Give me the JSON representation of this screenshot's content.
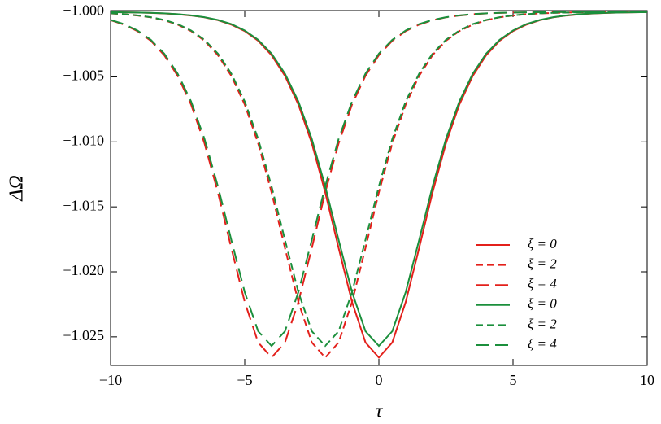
{
  "chart_data": {
    "type": "line",
    "x_label": "τ",
    "y_label": "ΔΩ",
    "x": [
      -10,
      -9.5,
      -9,
      -8.5,
      -8,
      -7.5,
      -7,
      -6.5,
      -6,
      -5.5,
      -5,
      -4.5,
      -4,
      -3.5,
      -3,
      -2.5,
      -2,
      -1.5,
      -1,
      -0.5,
      0,
      0.5,
      1,
      1.5,
      2,
      2.5,
      3,
      3.5,
      4,
      4.5,
      5,
      5.5,
      6,
      6.5,
      7,
      7.5,
      8,
      8.5,
      9,
      9.5,
      10
    ],
    "series": [
      {
        "name": "ξ = 0",
        "color": "#e3201b",
        "dash": "solid",
        "values": [
          -1.00002,
          -1.00003,
          -1.00005,
          -1.00008,
          -1.00012,
          -1.00018,
          -1.00028,
          -1.00042,
          -1.00064,
          -1.00098,
          -1.00148,
          -1.00222,
          -1.00333,
          -1.00492,
          -1.00713,
          -1.01011,
          -1.01389,
          -1.01817,
          -1.02232,
          -1.02543,
          -1.0266,
          -1.02543,
          -1.02232,
          -1.01817,
          -1.01389,
          -1.01011,
          -1.00713,
          -1.00492,
          -1.00333,
          -1.00222,
          -1.00148,
          -1.00098,
          -1.00064,
          -1.00042,
          -1.00028,
          -1.00018,
          -1.00012,
          -1.00008,
          -1.00005,
          -1.00003,
          -1.00002
        ]
      },
      {
        "name": "ξ = 2",
        "color": "#e3201b",
        "dash": "short",
        "values": [
          -1.00012,
          -1.00018,
          -1.00028,
          -1.00042,
          -1.00064,
          -1.00098,
          -1.00148,
          -1.00222,
          -1.00333,
          -1.00492,
          -1.00713,
          -1.01011,
          -1.01389,
          -1.01817,
          -1.02232,
          -1.02543,
          -1.0266,
          -1.02543,
          -1.02232,
          -1.01817,
          -1.01389,
          -1.01011,
          -1.00713,
          -1.00492,
          -1.00333,
          -1.00222,
          -1.00148,
          -1.00098,
          -1.00064,
          -1.00042,
          -1.00028,
          -1.00018,
          -1.00012,
          -1.00008,
          -1.00005,
          -1.00003,
          -1.00002,
          -1.00001,
          -1.00001,
          -1.00001,
          -1
        ]
      },
      {
        "name": "ξ = 4",
        "color": "#e3201b",
        "dash": "long",
        "values": [
          -1.00064,
          -1.00098,
          -1.00148,
          -1.00222,
          -1.00333,
          -1.00492,
          -1.00713,
          -1.01011,
          -1.01389,
          -1.01817,
          -1.02232,
          -1.02543,
          -1.0266,
          -1.02543,
          -1.02232,
          -1.01817,
          -1.01389,
          -1.01011,
          -1.00713,
          -1.00492,
          -1.00333,
          -1.00222,
          -1.00148,
          -1.00098,
          -1.00064,
          -1.00042,
          -1.00028,
          -1.00018,
          -1.00012,
          -1.00008,
          -1.00005,
          -1.00003,
          -1.00002,
          -1.00001,
          -1.00001,
          -1.00001,
          -1,
          -1,
          -1,
          -1,
          -1
        ]
      },
      {
        "name": "ξ = 0",
        "color": "#1b8f3c",
        "dash": "solid",
        "values": [
          -1.00002,
          -1.00003,
          -1.00005,
          -1.00007,
          -1.00011,
          -1.00017,
          -1.00027,
          -1.00041,
          -1.00062,
          -1.00094,
          -1.00143,
          -1.00215,
          -1.00321,
          -1.00475,
          -1.00689,
          -1.00977,
          -1.01342,
          -1.01755,
          -1.02156,
          -1.02457,
          -1.0257,
          -1.02457,
          -1.02156,
          -1.01755,
          -1.01342,
          -1.00977,
          -1.00689,
          -1.00475,
          -1.00321,
          -1.00215,
          -1.00143,
          -1.00094,
          -1.00062,
          -1.00041,
          -1.00027,
          -1.00017,
          -1.00011,
          -1.00007,
          -1.00005,
          -1.00003,
          -1.00002
        ]
      },
      {
        "name": "ξ = 2",
        "color": "#1b8f3c",
        "dash": "short",
        "values": [
          -1.00011,
          -1.00017,
          -1.00027,
          -1.00041,
          -1.00062,
          -1.00094,
          -1.00143,
          -1.00215,
          -1.00321,
          -1.00475,
          -1.00689,
          -1.00977,
          -1.01342,
          -1.01755,
          -1.02156,
          -1.02457,
          -1.0257,
          -1.02457,
          -1.02156,
          -1.01755,
          -1.01342,
          -1.00977,
          -1.00689,
          -1.00475,
          -1.00321,
          -1.00215,
          -1.00143,
          -1.00094,
          -1.00062,
          -1.00041,
          -1.00027,
          -1.00017,
          -1.00011,
          -1.00007,
          -1.00005,
          -1.00003,
          -1.00002,
          -1.00001,
          -1.00001,
          -1.00001,
          -1
        ]
      },
      {
        "name": "ξ = 4",
        "color": "#1b8f3c",
        "dash": "long",
        "values": [
          -1.00062,
          -1.00094,
          -1.00143,
          -1.00215,
          -1.00321,
          -1.00475,
          -1.00689,
          -1.00977,
          -1.01342,
          -1.01755,
          -1.02156,
          -1.02457,
          -1.0257,
          -1.02457,
          -1.02156,
          -1.01755,
          -1.01342,
          -1.00977,
          -1.00689,
          -1.00475,
          -1.00321,
          -1.00215,
          -1.00143,
          -1.00094,
          -1.00062,
          -1.00041,
          -1.00027,
          -1.00017,
          -1.00011,
          -1.00007,
          -1.00005,
          -1.00003,
          -1.00002,
          -1.00001,
          -1.00001,
          -1.00001,
          -1,
          -1,
          -1,
          -1,
          -1
        ]
      }
    ],
    "xlim": [
      -10,
      10
    ],
    "ylim": [
      -1.0272,
      -0.9999
    ],
    "xticks": [
      {
        "value": -10,
        "label": "−10"
      },
      {
        "value": -5,
        "label": "−5"
      },
      0,
      5,
      10
    ],
    "yticks": [
      {
        "value": -1.0,
        "label": "−1.000"
      },
      {
        "value": -1.005,
        "label": "−1.005"
      },
      {
        "value": -1.01,
        "label": "−1.010"
      },
      {
        "value": -1.015,
        "label": "−1.015"
      },
      {
        "value": -1.02,
        "label": "−1.020"
      },
      {
        "value": -1.025,
        "label": "−1.025"
      }
    ],
    "grid": false,
    "legend": "lower right"
  }
}
